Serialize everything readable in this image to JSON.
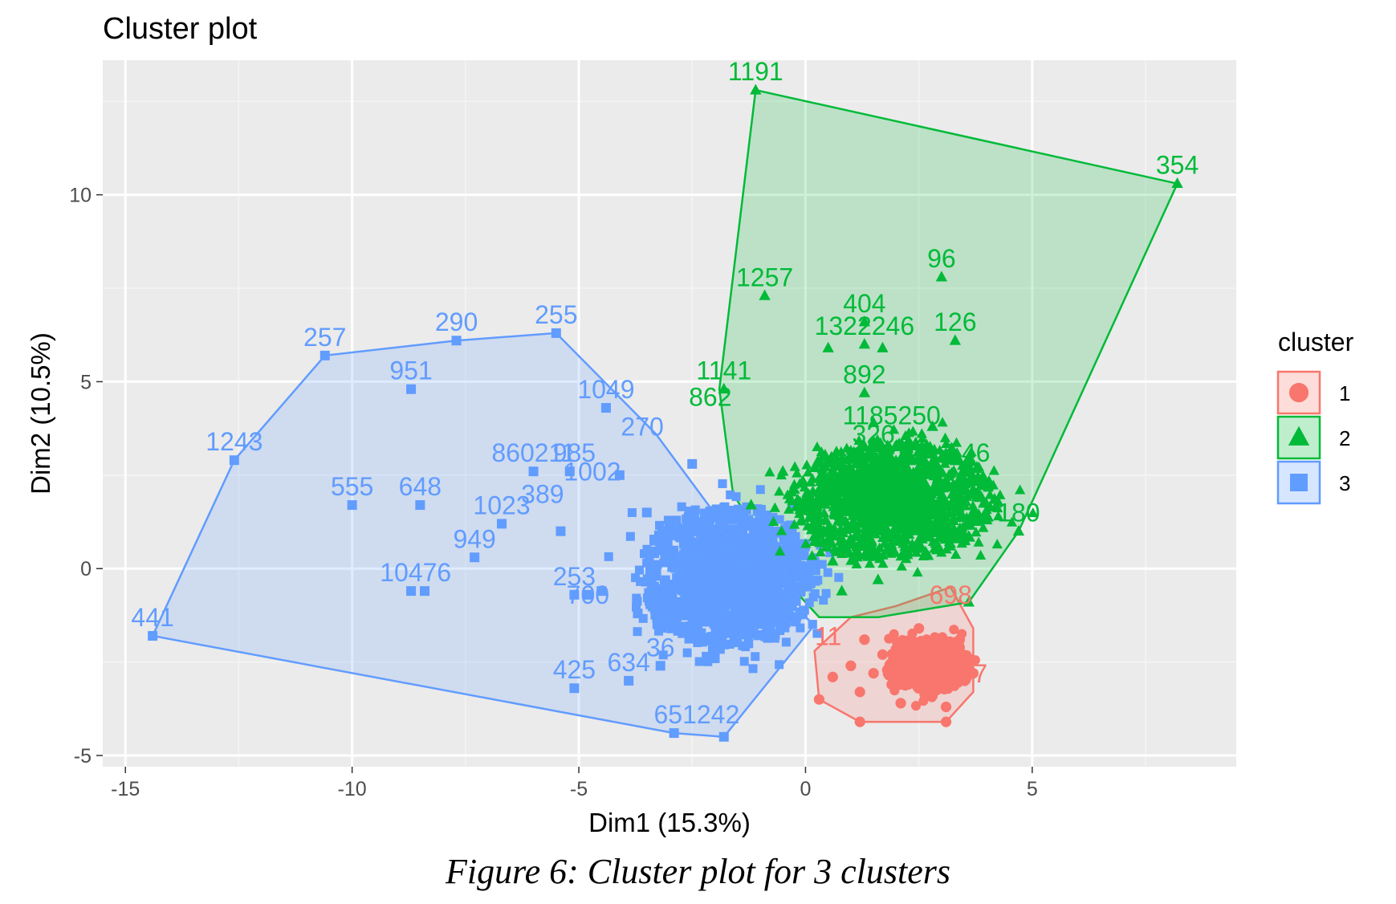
{
  "caption": "Figure 6: Cluster plot for 3 clusters",
  "chart_data": {
    "type": "scatter",
    "title": "Cluster plot",
    "xlabel": "Dim1 (15.3%)",
    "ylabel": "Dim2 (10.5%)",
    "xlim": [
      -15.5,
      9.5
    ],
    "ylim": [
      -5.3,
      13.6
    ],
    "x_ticks": [
      -15,
      -10,
      -5,
      0,
      5
    ],
    "y_ticks": [
      -5,
      0,
      5,
      10
    ],
    "x_tick_labels": [
      "-15",
      "-10",
      "-5",
      "0",
      "5"
    ],
    "y_tick_labels": [
      "-5",
      "0",
      "5",
      "10"
    ],
    "grid": true,
    "legend": {
      "title": "cluster",
      "position": "right",
      "entries": [
        "1",
        "2",
        "3"
      ]
    },
    "colors": {
      "1": "#F8766D",
      "2": "#00BA38",
      "3": "#619CFF"
    },
    "series": [
      {
        "name": "1",
        "marker": "circle",
        "hull": [
          [
            0.3,
            -3.5
          ],
          [
            1.2,
            -4.1
          ],
          [
            3.1,
            -4.1
          ],
          [
            3.7,
            -3.3
          ],
          [
            3.7,
            -1.6
          ],
          [
            3.2,
            -0.5
          ],
          [
            2.0,
            -1.0
          ],
          [
            1.0,
            -1.3
          ],
          [
            0.2,
            -2.2
          ]
        ],
        "points": [
          {
            "x": 2.6,
            "y": -2.3
          },
          {
            "x": 2.9,
            "y": -2.7
          },
          {
            "x": 2.3,
            "y": -2.1
          },
          {
            "x": 3.2,
            "y": -2.5
          },
          {
            "x": 2.7,
            "y": -3.0
          },
          {
            "x": 2.4,
            "y": -2.6
          },
          {
            "x": 3.0,
            "y": -2.0
          },
          {
            "x": 1.9,
            "y": -3.1
          },
          {
            "x": 1.5,
            "y": -2.8
          },
          {
            "x": 1.2,
            "y": -3.3
          },
          {
            "x": 2.1,
            "y": -3.6
          },
          {
            "x": 2.8,
            "y": -3.4
          },
          {
            "x": 1.0,
            "y": -2.6
          },
          {
            "x": 0.6,
            "y": -2.9
          },
          {
            "x": 3.4,
            "y": -1.9
          },
          {
            "x": 2.5,
            "y": -1.6
          },
          {
            "x": 1.7,
            "y": -2.3
          },
          {
            "x": 1.3,
            "y": -1.9
          },
          {
            "x": 3.1,
            "y": -3.7
          },
          {
            "x": 1.2,
            "y": -4.1
          },
          {
            "x": 3.1,
            "y": -4.1
          },
          {
            "x": 0.3,
            "y": -3.5
          },
          {
            "x": 3.7,
            "y": -2.8
          },
          {
            "x": 2.2,
            "y": -2.9
          }
        ],
        "labels": [
          {
            "x": 3.7,
            "y": -3.3,
            "text": "57"
          },
          {
            "x": 3.2,
            "y": -1.2,
            "text": "698"
          },
          {
            "x": 0.5,
            "y": -2.3,
            "text": "11"
          }
        ]
      },
      {
        "name": "2",
        "marker": "triangle",
        "hull": [
          [
            -1.1,
            12.8
          ],
          [
            8.2,
            10.3
          ],
          [
            4.7,
            1.0
          ],
          [
            3.6,
            -0.9
          ],
          [
            1.6,
            -1.3
          ],
          [
            0.3,
            -1.3
          ],
          [
            -0.3,
            -0.5
          ],
          [
            -1.6,
            2.0
          ],
          [
            -1.9,
            4.8
          ]
        ],
        "points": [
          {
            "x": -1.1,
            "y": 12.8
          },
          {
            "x": 8.2,
            "y": 10.3
          },
          {
            "x": -0.9,
            "y": 7.3
          },
          {
            "x": 3.0,
            "y": 7.8
          },
          {
            "x": 3.3,
            "y": 6.1
          },
          {
            "x": 1.3,
            "y": 6.6
          },
          {
            "x": 0.5,
            "y": 5.9
          },
          {
            "x": 1.7,
            "y": 5.9
          },
          {
            "x": 1.3,
            "y": 6.0
          },
          {
            "x": -1.8,
            "y": 4.8
          },
          {
            "x": 1.3,
            "y": 4.7
          },
          {
            "x": 2.8,
            "y": 3.8
          },
          {
            "x": 1.5,
            "y": 3.9
          },
          {
            "x": 4.7,
            "y": 1.0
          },
          {
            "x": 3.6,
            "y": -0.9
          },
          {
            "x": 1.6,
            "y": -0.3
          },
          {
            "x": 0.8,
            "y": -0.6
          },
          {
            "x": 1.0,
            "y": 2.0
          },
          {
            "x": 1.8,
            "y": 2.5
          },
          {
            "x": 2.5,
            "y": 1.5
          },
          {
            "x": 0.2,
            "y": 1.2
          },
          {
            "x": 3.3,
            "y": 2.2
          },
          {
            "x": 2.2,
            "y": 0.6
          },
          {
            "x": -0.5,
            "y": 2.6
          },
          {
            "x": 1.2,
            "y": 3.0
          },
          {
            "x": 3.8,
            "y": 1.3
          },
          {
            "x": 0.6,
            "y": 0.2
          },
          {
            "x": 2.9,
            "y": 0.5
          },
          {
            "x": -1.2,
            "y": 1.7
          },
          {
            "x": 1.5,
            "y": 1.1
          }
        ],
        "labels": [
          {
            "x": -1.1,
            "y": 12.8,
            "text": "1191"
          },
          {
            "x": 8.2,
            "y": 10.3,
            "text": "354"
          },
          {
            "x": 3.0,
            "y": 7.8,
            "text": "96"
          },
          {
            "x": -0.9,
            "y": 7.3,
            "text": "1257"
          },
          {
            "x": 1.3,
            "y": 6.6,
            "text": "404"
          },
          {
            "x": 1.3,
            "y": 6.0,
            "text": "1322246"
          },
          {
            "x": 3.3,
            "y": 6.1,
            "text": "126"
          },
          {
            "x": 1.3,
            "y": 4.7,
            "text": "892"
          },
          {
            "x": -1.8,
            "y": 4.8,
            "text": "1141"
          },
          {
            "x": -2.1,
            "y": 4.1,
            "text": "862"
          },
          {
            "x": 1.9,
            "y": 3.6,
            "text": "1185250"
          },
          {
            "x": 1.5,
            "y": 3.1,
            "text": "326"
          },
          {
            "x": 3.6,
            "y": 2.6,
            "text": "546"
          },
          {
            "x": 4.7,
            "y": 1.0,
            "text": "180"
          }
        ]
      },
      {
        "name": "3",
        "marker": "square",
        "hull": [
          [
            -14.4,
            -1.8
          ],
          [
            -12.6,
            2.9
          ],
          [
            -10.6,
            5.7
          ],
          [
            -7.7,
            6.1
          ],
          [
            -5.5,
            6.3
          ],
          [
            -3.3,
            3.6
          ],
          [
            -0.8,
            -0.5
          ],
          [
            0.2,
            -1.5
          ],
          [
            -1.8,
            -4.5
          ],
          [
            -2.9,
            -4.4
          ]
        ],
        "points": [
          {
            "x": -14.4,
            "y": -1.8
          },
          {
            "x": -12.6,
            "y": 2.9
          },
          {
            "x": -10.6,
            "y": 5.7
          },
          {
            "x": -7.7,
            "y": 6.1
          },
          {
            "x": -5.5,
            "y": 6.3
          },
          {
            "x": -8.7,
            "y": 4.8
          },
          {
            "x": -4.4,
            "y": 4.3
          },
          {
            "x": -10.0,
            "y": 1.7
          },
          {
            "x": -8.5,
            "y": 1.7
          },
          {
            "x": -6.7,
            "y": 1.2
          },
          {
            "x": -7.3,
            "y": 0.3
          },
          {
            "x": -8.7,
            "y": -0.6
          },
          {
            "x": -8.4,
            "y": -0.6
          },
          {
            "x": -5.1,
            "y": -0.7
          },
          {
            "x": -4.5,
            "y": -0.6
          },
          {
            "x": -5.1,
            "y": -3.2
          },
          {
            "x": -3.9,
            "y": -3.0
          },
          {
            "x": -2.9,
            "y": -4.4
          },
          {
            "x": -1.8,
            "y": -4.5
          },
          {
            "x": -3.2,
            "y": -2.6
          },
          {
            "x": -6.0,
            "y": 2.6
          },
          {
            "x": -5.2,
            "y": 2.6
          },
          {
            "x": -4.1,
            "y": 2.5
          },
          {
            "x": -5.4,
            "y": 1.0
          },
          {
            "x": -3.5,
            "y": 1.5
          },
          {
            "x": -2.5,
            "y": 2.8
          },
          {
            "x": -4.8,
            "y": -0.7
          },
          {
            "x": -3.7,
            "y": -1.2
          },
          {
            "x": -2.2,
            "y": 0.9
          },
          {
            "x": -1.0,
            "y": -0.3
          },
          {
            "x": -1.7,
            "y": -1.5
          },
          {
            "x": -2.7,
            "y": 0.2
          },
          {
            "x": -0.6,
            "y": -1.2
          },
          {
            "x": -1.3,
            "y": 0.6
          },
          {
            "x": -2.0,
            "y": -2.4
          }
        ],
        "labels": [
          {
            "x": -14.4,
            "y": -1.8,
            "text": "441"
          },
          {
            "x": -12.6,
            "y": 2.9,
            "text": "1243"
          },
          {
            "x": -10.6,
            "y": 5.7,
            "text": "257"
          },
          {
            "x": -7.7,
            "y": 6.1,
            "text": "290"
          },
          {
            "x": -5.5,
            "y": 6.3,
            "text": "255"
          },
          {
            "x": -8.7,
            "y": 4.8,
            "text": "951"
          },
          {
            "x": -4.4,
            "y": 4.3,
            "text": "1049"
          },
          {
            "x": -10.0,
            "y": 1.7,
            "text": "555"
          },
          {
            "x": -8.5,
            "y": 1.7,
            "text": "648"
          },
          {
            "x": -6.7,
            "y": 1.2,
            "text": "1023"
          },
          {
            "x": -7.3,
            "y": 0.3,
            "text": "949"
          },
          {
            "x": -8.6,
            "y": -0.6,
            "text": "10476"
          },
          {
            "x": -6.0,
            "y": 2.6,
            "text": "860211"
          },
          {
            "x": -5.1,
            "y": 2.6,
            "text": "985"
          },
          {
            "x": -3.6,
            "y": 3.3,
            "text": "270"
          },
          {
            "x": -4.7,
            "y": 2.1,
            "text": "1002"
          },
          {
            "x": -5.8,
            "y": 1.5,
            "text": "389"
          },
          {
            "x": -5.1,
            "y": -0.7,
            "text": "253"
          },
          {
            "x": -4.8,
            "y": -1.2,
            "text": "700"
          },
          {
            "x": -5.1,
            "y": -3.2,
            "text": "425"
          },
          {
            "x": -3.9,
            "y": -3.0,
            "text": "634"
          },
          {
            "x": -3.2,
            "y": -2.6,
            "text": "36"
          },
          {
            "x": -2.4,
            "y": -4.4,
            "text": "651242"
          }
        ]
      }
    ],
    "dense_clouds": [
      {
        "series": "3",
        "cx": -1.7,
        "cy": -0.2,
        "rx": 1.9,
        "ry": 1.85,
        "n": 1400
      },
      {
        "series": "2",
        "cx": 1.9,
        "cy": 1.85,
        "rx": 2.2,
        "ry": 1.55,
        "n": 1500
      },
      {
        "series": "1",
        "cx": 2.7,
        "cy": -2.55,
        "rx": 0.9,
        "ry": 0.75,
        "n": 500
      }
    ]
  }
}
